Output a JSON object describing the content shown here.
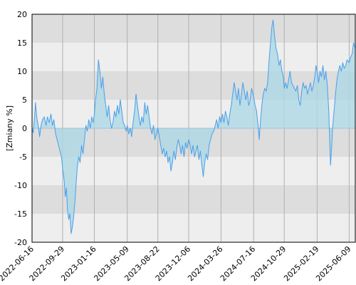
{
  "chart_data": {
    "type": "area",
    "ylabel": "[Zmiany %]",
    "ylim": [
      -20,
      20
    ],
    "y_ticks": [
      20,
      15,
      10,
      5,
      0,
      -5,
      -10,
      -15,
      -20
    ],
    "x_range": [
      "2022-06-16",
      "2025-06-30"
    ],
    "x_ticks": [
      "2022-06-16",
      "2022-09-29",
      "2023-01-16",
      "2023-05-09",
      "2023-08-22",
      "2023-12-06",
      "2024-03-26",
      "2024-07-16",
      "2024-10-29",
      "2025-02-19",
      "2025-06-09"
    ],
    "grid": true,
    "legend": "none",
    "colors": {
      "line": "#4a9fe8",
      "fill": "#add8e6",
      "band_dark": "#dddddd",
      "band_light": "#eeeeee",
      "vgrid": "#b0b0b0"
    },
    "series": [
      {
        "points": [
          [
            "2022-06-16",
            0
          ],
          [
            "2022-06-20",
            -0.8
          ],
          [
            "2022-06-24",
            1.5
          ],
          [
            "2022-06-28",
            4.5
          ],
          [
            "2022-07-02",
            2.0
          ],
          [
            "2022-07-07",
            0.5
          ],
          [
            "2022-07-12",
            -1.5
          ],
          [
            "2022-07-17",
            0.5
          ],
          [
            "2022-07-22",
            1.5
          ],
          [
            "2022-07-28",
            2.0
          ],
          [
            "2022-08-03",
            0.5
          ],
          [
            "2022-08-08",
            2.0
          ],
          [
            "2022-08-14",
            1.0
          ],
          [
            "2022-08-20",
            2.5
          ],
          [
            "2022-08-25",
            0.5
          ],
          [
            "2022-08-30",
            1.5
          ],
          [
            "2022-09-05",
            -1.0
          ],
          [
            "2022-09-10",
            -2.0
          ],
          [
            "2022-09-15",
            -3.0
          ],
          [
            "2022-09-20",
            -4.0
          ],
          [
            "2022-09-25",
            -5.0
          ],
          [
            "2022-09-29",
            -7.0
          ],
          [
            "2022-10-04",
            -9.0
          ],
          [
            "2022-10-08",
            -12.0
          ],
          [
            "2022-10-12",
            -10.5
          ],
          [
            "2022-10-16",
            -14.5
          ],
          [
            "2022-10-20",
            -16.0
          ],
          [
            "2022-10-24",
            -15.0
          ],
          [
            "2022-10-28",
            -18.5
          ],
          [
            "2022-11-01",
            -17.5
          ],
          [
            "2022-11-05",
            -16.0
          ],
          [
            "2022-11-10",
            -13.0
          ],
          [
            "2022-11-14",
            -10.0
          ],
          [
            "2022-11-18",
            -7.0
          ],
          [
            "2022-11-23",
            -5.0
          ],
          [
            "2022-11-28",
            -6.0
          ],
          [
            "2022-12-03",
            -3.0
          ],
          [
            "2022-12-08",
            -4.5
          ],
          [
            "2022-12-13",
            -2.0
          ],
          [
            "2022-12-18",
            0.5
          ],
          [
            "2022-12-23",
            -0.5
          ],
          [
            "2022-12-28",
            1.5
          ],
          [
            "2023-01-02",
            0.0
          ],
          [
            "2023-01-07",
            2.0
          ],
          [
            "2023-01-12",
            1.0
          ],
          [
            "2023-01-16",
            2.5
          ],
          [
            "2023-01-20",
            5.0
          ],
          [
            "2023-01-25",
            7.0
          ],
          [
            "2023-01-30",
            12.0
          ],
          [
            "2023-02-04",
            10.0
          ],
          [
            "2023-02-09",
            7.0
          ],
          [
            "2023-02-14",
            9.0
          ],
          [
            "2023-02-19",
            6.0
          ],
          [
            "2023-02-24",
            4.0
          ],
          [
            "2023-03-01",
            2.0
          ],
          [
            "2023-03-06",
            4.0
          ],
          [
            "2023-03-11",
            1.5
          ],
          [
            "2023-03-16",
            0.0
          ],
          [
            "2023-03-21",
            1.0
          ],
          [
            "2023-03-26",
            3.0
          ],
          [
            "2023-03-31",
            2.0
          ],
          [
            "2023-04-05",
            4.0
          ],
          [
            "2023-04-10",
            2.5
          ],
          [
            "2023-04-15",
            5.0
          ],
          [
            "2023-04-20",
            3.0
          ],
          [
            "2023-04-25",
            1.0
          ],
          [
            "2023-04-30",
            0.5
          ],
          [
            "2023-05-05",
            -0.5
          ],
          [
            "2023-05-09",
            0.5
          ],
          [
            "2023-05-14",
            -1.0
          ],
          [
            "2023-05-19",
            0.0
          ],
          [
            "2023-05-24",
            -1.5
          ],
          [
            "2023-05-29",
            1.0
          ],
          [
            "2023-06-03",
            3.0
          ],
          [
            "2023-06-08",
            6.0
          ],
          [
            "2023-06-13",
            4.0
          ],
          [
            "2023-06-18",
            2.0
          ],
          [
            "2023-06-23",
            0.5
          ],
          [
            "2023-06-28",
            2.0
          ],
          [
            "2023-07-03",
            1.0
          ],
          [
            "2023-07-08",
            4.5
          ],
          [
            "2023-07-13",
            2.5
          ],
          [
            "2023-07-18",
            4.0
          ],
          [
            "2023-07-23",
            2.0
          ],
          [
            "2023-07-28",
            0.0
          ],
          [
            "2023-08-02",
            -1.0
          ],
          [
            "2023-08-07",
            0.5
          ],
          [
            "2023-08-12",
            -2.0
          ],
          [
            "2023-08-17",
            -1.0
          ],
          [
            "2023-08-22",
            0.0
          ],
          [
            "2023-08-27",
            -1.5
          ],
          [
            "2023-09-01",
            -3.0
          ],
          [
            "2023-09-06",
            -4.5
          ],
          [
            "2023-09-11",
            -3.5
          ],
          [
            "2023-09-16",
            -5.0
          ],
          [
            "2023-09-21",
            -4.0
          ],
          [
            "2023-09-26",
            -6.0
          ],
          [
            "2023-10-01",
            -5.0
          ],
          [
            "2023-10-06",
            -7.5
          ],
          [
            "2023-10-11",
            -6.0
          ],
          [
            "2023-10-16",
            -4.0
          ],
          [
            "2023-10-21",
            -5.5
          ],
          [
            "2023-10-26",
            -3.5
          ],
          [
            "2023-10-31",
            -2.0
          ],
          [
            "2023-11-05",
            -3.0
          ],
          [
            "2023-11-10",
            -4.5
          ],
          [
            "2023-11-15",
            -3.0
          ],
          [
            "2023-11-20",
            -5.0
          ],
          [
            "2023-11-25",
            -2.5
          ],
          [
            "2023-11-30",
            -3.5
          ],
          [
            "2023-12-06",
            -2.0
          ],
          [
            "2023-12-11",
            -3.0
          ],
          [
            "2023-12-16",
            -4.5
          ],
          [
            "2023-12-21",
            -3.0
          ],
          [
            "2023-12-26",
            -5.0
          ],
          [
            "2023-12-31",
            -4.0
          ],
          [
            "2024-01-05",
            -3.0
          ],
          [
            "2024-01-10",
            -5.5
          ],
          [
            "2024-01-15",
            -4.0
          ],
          [
            "2024-01-20",
            -6.5
          ],
          [
            "2024-01-25",
            -8.5
          ],
          [
            "2024-01-30",
            -6.0
          ],
          [
            "2024-02-04",
            -4.5
          ],
          [
            "2024-02-09",
            -5.5
          ],
          [
            "2024-02-14",
            -3.0
          ],
          [
            "2024-02-19",
            -2.0
          ],
          [
            "2024-02-24",
            -1.0
          ],
          [
            "2024-03-01",
            -0.5
          ],
          [
            "2024-03-06",
            0.5
          ],
          [
            "2024-03-11",
            1.5
          ],
          [
            "2024-03-16",
            0.0
          ],
          [
            "2024-03-21",
            2.0
          ],
          [
            "2024-03-26",
            1.0
          ],
          [
            "2024-03-31",
            2.5
          ],
          [
            "2024-04-05",
            1.0
          ],
          [
            "2024-04-10",
            3.0
          ],
          [
            "2024-04-15",
            2.0
          ],
          [
            "2024-04-20",
            0.5
          ],
          [
            "2024-04-25",
            2.5
          ],
          [
            "2024-04-30",
            4.0
          ],
          [
            "2024-05-05",
            6.0
          ],
          [
            "2024-05-10",
            8.0
          ],
          [
            "2024-05-15",
            6.5
          ],
          [
            "2024-05-20",
            5.0
          ],
          [
            "2024-05-25",
            7.0
          ],
          [
            "2024-05-30",
            4.0
          ],
          [
            "2024-06-04",
            6.0
          ],
          [
            "2024-06-09",
            8.0
          ],
          [
            "2024-06-14",
            6.5
          ],
          [
            "2024-06-19",
            5.0
          ],
          [
            "2024-06-24",
            6.5
          ],
          [
            "2024-06-29",
            4.0
          ],
          [
            "2024-07-04",
            5.0
          ],
          [
            "2024-07-09",
            7.0
          ],
          [
            "2024-07-16",
            5.5
          ],
          [
            "2024-07-21",
            4.0
          ],
          [
            "2024-07-26",
            3.0
          ],
          [
            "2024-07-31",
            0.5
          ],
          [
            "2024-08-04",
            -2.0
          ],
          [
            "2024-08-08",
            1.0
          ],
          [
            "2024-08-13",
            4.0
          ],
          [
            "2024-08-18",
            6.0
          ],
          [
            "2024-08-23",
            7.0
          ],
          [
            "2024-08-28",
            6.5
          ],
          [
            "2024-09-02",
            8.0
          ],
          [
            "2024-09-07",
            12.0
          ],
          [
            "2024-09-12",
            15.0
          ],
          [
            "2024-09-17",
            18.0
          ],
          [
            "2024-09-21",
            19.0
          ],
          [
            "2024-09-26",
            16.0
          ],
          [
            "2024-10-01",
            14.0
          ],
          [
            "2024-10-06",
            13.0
          ],
          [
            "2024-10-11",
            11.0
          ],
          [
            "2024-10-16",
            12.0
          ],
          [
            "2024-10-21",
            10.0
          ],
          [
            "2024-10-26",
            9.0
          ],
          [
            "2024-10-29",
            7.0
          ],
          [
            "2024-11-03",
            8.0
          ],
          [
            "2024-11-08",
            7.0
          ],
          [
            "2024-11-13",
            8.5
          ],
          [
            "2024-11-18",
            10.0
          ],
          [
            "2024-11-23",
            8.0
          ],
          [
            "2024-11-28",
            7.5
          ],
          [
            "2024-12-03",
            7.0
          ],
          [
            "2024-12-08",
            6.5
          ],
          [
            "2024-12-13",
            7.5
          ],
          [
            "2024-12-18",
            5.0
          ],
          [
            "2024-12-23",
            4.0
          ],
          [
            "2024-12-28",
            6.5
          ],
          [
            "2025-01-02",
            8.0
          ],
          [
            "2025-01-07",
            7.0
          ],
          [
            "2025-01-12",
            7.5
          ],
          [
            "2025-01-17",
            6.0
          ],
          [
            "2025-01-22",
            7.0
          ],
          [
            "2025-01-27",
            8.0
          ],
          [
            "2025-02-01",
            6.5
          ],
          [
            "2025-02-06",
            7.5
          ],
          [
            "2025-02-11",
            9.0
          ],
          [
            "2025-02-15",
            11.0
          ],
          [
            "2025-02-19",
            10.0
          ],
          [
            "2025-02-24",
            8.0
          ],
          [
            "2025-03-01",
            10.0
          ],
          [
            "2025-03-06",
            9.0
          ],
          [
            "2025-03-11",
            11.0
          ],
          [
            "2025-03-16",
            8.5
          ],
          [
            "2025-03-21",
            10.0
          ],
          [
            "2025-03-26",
            7.5
          ],
          [
            "2025-03-31",
            3.0
          ],
          [
            "2025-04-03",
            -2.0
          ],
          [
            "2025-04-06",
            -6.5
          ],
          [
            "2025-04-09",
            -4.0
          ],
          [
            "2025-04-13",
            0.0
          ],
          [
            "2025-04-18",
            3.0
          ],
          [
            "2025-04-23",
            6.0
          ],
          [
            "2025-04-28",
            8.5
          ],
          [
            "2025-05-03",
            10.0
          ],
          [
            "2025-05-08",
            11.0
          ],
          [
            "2025-05-13",
            10.0
          ],
          [
            "2025-05-18",
            11.5
          ],
          [
            "2025-05-23",
            10.5
          ],
          [
            "2025-05-28",
            11.0
          ],
          [
            "2025-06-02",
            12.0
          ],
          [
            "2025-06-09",
            11.5
          ],
          [
            "2025-06-14",
            12.5
          ],
          [
            "2025-06-19",
            13.0
          ],
          [
            "2025-06-24",
            15.0
          ],
          [
            "2025-06-30",
            14.0
          ]
        ]
      }
    ]
  }
}
